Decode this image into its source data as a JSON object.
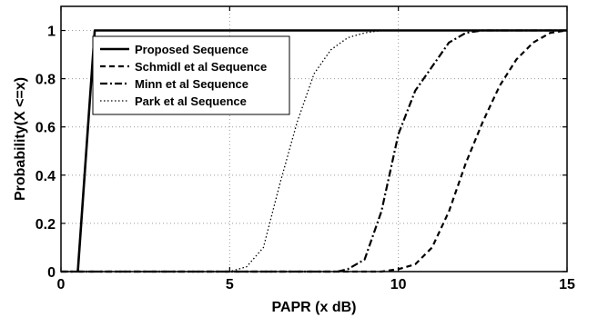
{
  "chart_data": {
    "type": "line",
    "xlabel": "PAPR (x dB)",
    "ylabel": "Probability(X <=x)",
    "xlim": [
      0,
      15
    ],
    "ylim": [
      0,
      1.1
    ],
    "xticks": [
      "0",
      "5",
      "10",
      "15"
    ],
    "yticks": [
      "0",
      "0.2",
      "0.4",
      "0.6",
      "0.8",
      "1"
    ],
    "grid": true,
    "legend_position": "top-left",
    "series": [
      {
        "name": "Proposed Sequence",
        "style": "solid",
        "color": "#000000",
        "points": [
          [
            0.5,
            0
          ],
          [
            1.0,
            1
          ],
          [
            15,
            1
          ]
        ]
      },
      {
        "name": "Schmidl et al Sequence",
        "style": "dashed",
        "color": "#000000",
        "points": [
          [
            0,
            0
          ],
          [
            9.5,
            0
          ],
          [
            10.0,
            0.01
          ],
          [
            10.5,
            0.03
          ],
          [
            11.0,
            0.1
          ],
          [
            11.5,
            0.25
          ],
          [
            12.0,
            0.45
          ],
          [
            12.5,
            0.62
          ],
          [
            13.0,
            0.77
          ],
          [
            13.5,
            0.88
          ],
          [
            14.0,
            0.95
          ],
          [
            14.5,
            0.99
          ],
          [
            15.0,
            1.0
          ]
        ]
      },
      {
        "name": "Minn et al Sequence",
        "style": "dashdot",
        "color": "#000000",
        "points": [
          [
            0,
            0
          ],
          [
            8.2,
            0
          ],
          [
            8.5,
            0.01
          ],
          [
            9.0,
            0.05
          ],
          [
            9.5,
            0.25
          ],
          [
            10.0,
            0.57
          ],
          [
            10.5,
            0.75
          ],
          [
            11.0,
            0.85
          ],
          [
            11.5,
            0.95
          ],
          [
            12.0,
            0.99
          ],
          [
            12.5,
            1.0
          ],
          [
            15,
            1.0
          ]
        ]
      },
      {
        "name": "Park et al Sequence",
        "style": "dotted",
        "color": "#000000",
        "points": [
          [
            0,
            0
          ],
          [
            5.0,
            0
          ],
          [
            5.5,
            0.02
          ],
          [
            6.0,
            0.1
          ],
          [
            6.5,
            0.37
          ],
          [
            7.0,
            0.62
          ],
          [
            7.5,
            0.82
          ],
          [
            8.0,
            0.92
          ],
          [
            8.5,
            0.97
          ],
          [
            9.0,
            0.99
          ],
          [
            9.5,
            1.0
          ],
          [
            15,
            1.0
          ]
        ]
      }
    ]
  }
}
